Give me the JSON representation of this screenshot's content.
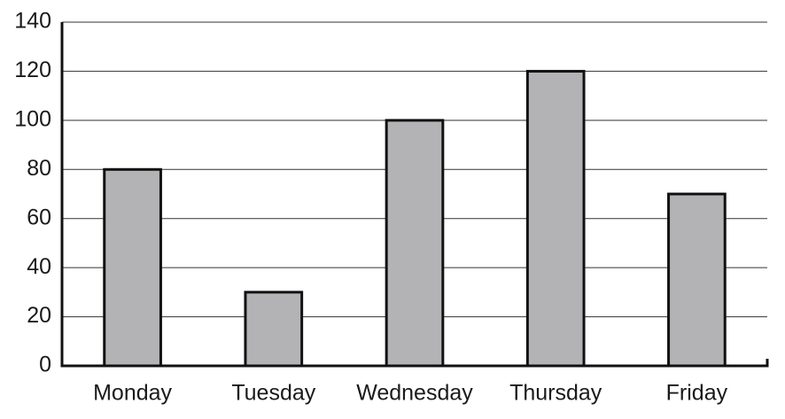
{
  "chart_data": {
    "type": "bar",
    "categories": [
      "Monday",
      "Tuesday",
      "Wednesday",
      "Thursday",
      "Friday"
    ],
    "values": [
      80,
      30,
      100,
      120,
      70
    ],
    "color": "#b3b3b6",
    "ylim": [
      0,
      140
    ],
    "yticks": [
      0,
      20,
      40,
      60,
      80,
      100,
      120,
      140
    ],
    "grid": true
  }
}
